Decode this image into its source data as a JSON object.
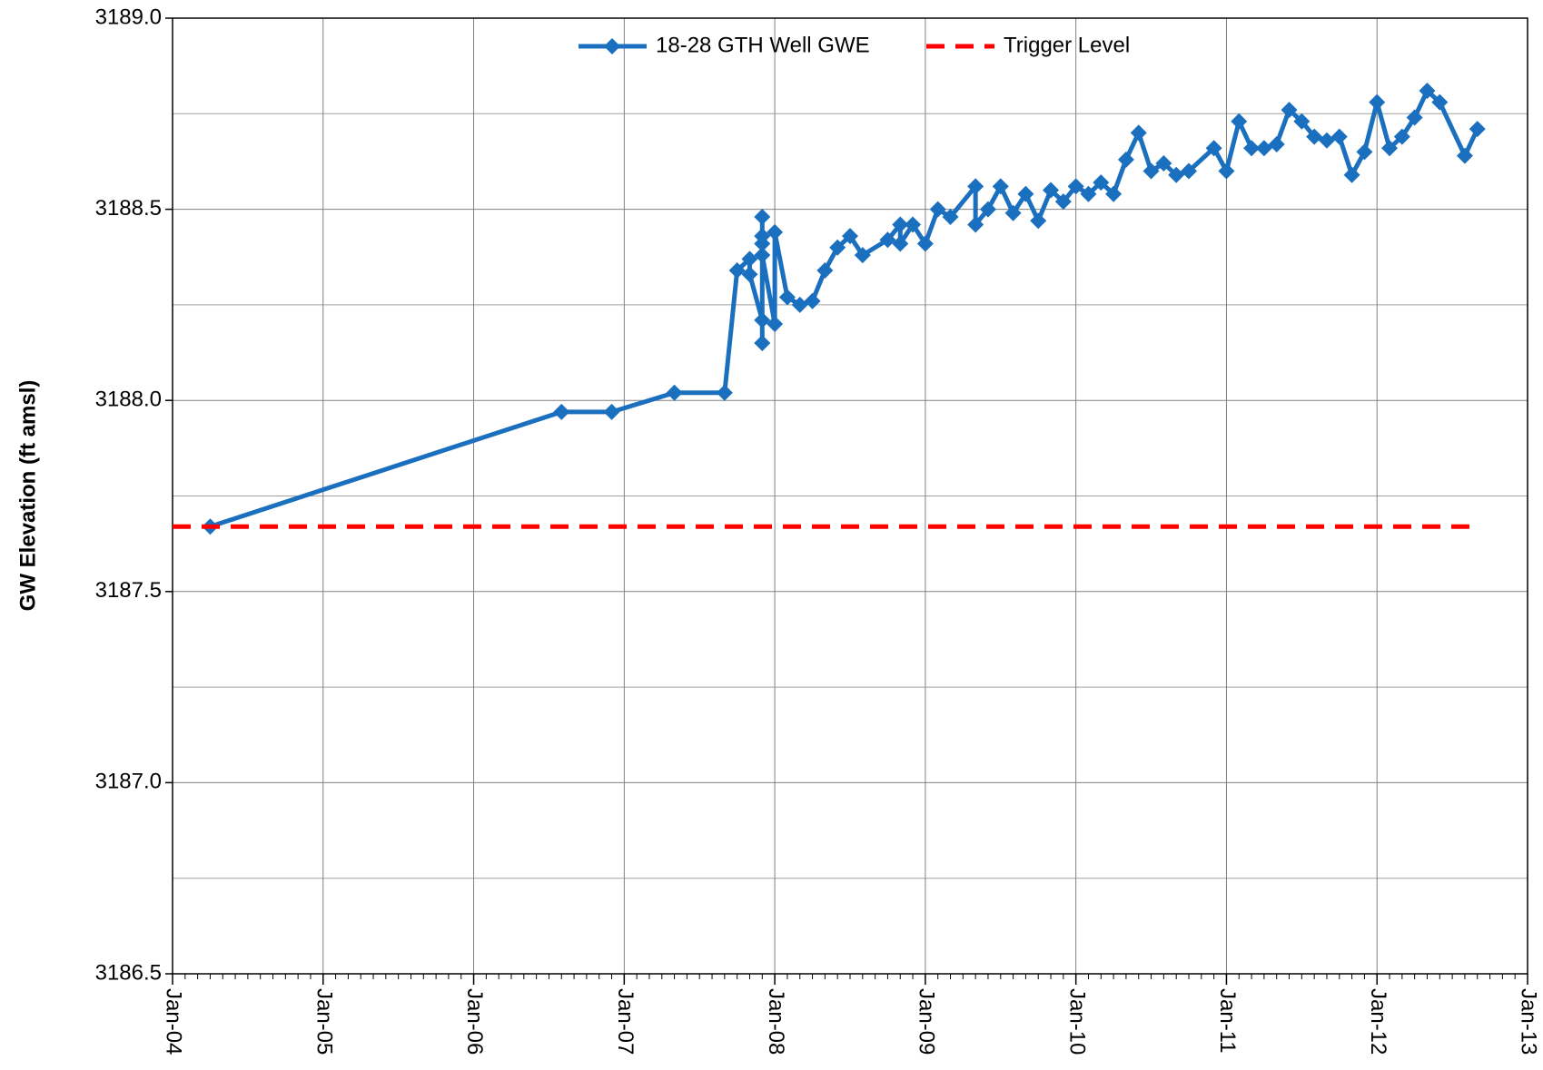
{
  "chart_data": {
    "type": "line",
    "y_label": "GW Elevation (ft amsl)",
    "xlim": [
      "2004-01",
      "2013-01"
    ],
    "xticks": [
      {
        "value": "2004-01",
        "label": "Jan-04"
      },
      {
        "value": "2005-01",
        "label": "Jan-05"
      },
      {
        "value": "2006-01",
        "label": "Jan-06"
      },
      {
        "value": "2007-01",
        "label": "Jan-07"
      },
      {
        "value": "2008-01",
        "label": "Jan-08"
      },
      {
        "value": "2009-01",
        "label": "Jan-09"
      },
      {
        "value": "2010-01",
        "label": "Jan-10"
      },
      {
        "value": "2011-01",
        "label": "Jan-11"
      },
      {
        "value": "2012-01",
        "label": "Jan-12"
      },
      {
        "value": "2013-01",
        "label": "Jan-13"
      }
    ],
    "ylim": [
      3186.5,
      3189.0
    ],
    "yticks": [
      {
        "value": 3186.5,
        "label": "3186.5"
      },
      {
        "value": 3187,
        "label": "3187.0"
      },
      {
        "value": 3187.5,
        "label": "3187.5"
      },
      {
        "value": 3188,
        "label": "3188.0"
      },
      {
        "value": 3188.5,
        "label": "3188.5"
      },
      {
        "value": 3189,
        "label": "3189.0"
      }
    ],
    "y_minor_gridlines": [
      3186.75,
      3187.25,
      3187.75,
      3188.25,
      3188.75
    ],
    "grid": true,
    "legend": "top",
    "series": [
      {
        "name": "18-28 GTH Well GWE",
        "color": "#1a6fbe",
        "marker": "diamond",
        "x": [
          "2004-04",
          "2006-08",
          "2006-12",
          "2007-05",
          "2007-09",
          "2007-10",
          "2007-11",
          "2007-11",
          "2007-12",
          "2007-12",
          "2007-12",
          "2007-12",
          "2007-12",
          "2007-12",
          "2008-01",
          "2008-01",
          "2008-02",
          "2008-03",
          "2008-04",
          "2008-05",
          "2008-06",
          "2008-07",
          "2008-08",
          "2008-10",
          "2008-11",
          "2008-11",
          "2008-12",
          "2009-01",
          "2009-02",
          "2009-03",
          "2009-05",
          "2009-05",
          "2009-06",
          "2009-07",
          "2009-08",
          "2009-09",
          "2009-10",
          "2009-11",
          "2009-12",
          "2010-01",
          "2010-02",
          "2010-03",
          "2010-04",
          "2010-05",
          "2010-06",
          "2010-07",
          "2010-08",
          "2010-09",
          "2010-10",
          "2010-12",
          "2011-01",
          "2011-02",
          "2011-03",
          "2011-04",
          "2011-05",
          "2011-06",
          "2011-07",
          "2011-08",
          "2011-09",
          "2011-10",
          "2011-11",
          "2011-12",
          "2012-01",
          "2012-02",
          "2012-03",
          "2012-04",
          "2012-05",
          "2012-06",
          "2012-08",
          "2012-09"
        ],
        "values": [
          3187.67,
          3187.97,
          3187.97,
          3188.02,
          3188.02,
          3188.34,
          3188.37,
          3188.33,
          3188.21,
          3188.43,
          3188.48,
          3188.15,
          3188.41,
          3188.38,
          3188.2,
          3188.44,
          3188.27,
          3188.25,
          3188.26,
          3188.34,
          3188.4,
          3188.43,
          3188.38,
          3188.42,
          3188.46,
          3188.41,
          3188.46,
          3188.41,
          3188.5,
          3188.48,
          3188.56,
          3188.46,
          3188.5,
          3188.56,
          3188.49,
          3188.54,
          3188.47,
          3188.55,
          3188.52,
          3188.56,
          3188.54,
          3188.57,
          3188.54,
          3188.63,
          3188.7,
          3188.6,
          3188.62,
          3188.59,
          3188.6,
          3188.66,
          3188.6,
          3188.73,
          3188.66,
          3188.66,
          3188.67,
          3188.76,
          3188.73,
          3188.69,
          3188.68,
          3188.69,
          3188.59,
          3188.65,
          3188.78,
          3188.66,
          3188.69,
          3188.74,
          3188.81,
          3188.78,
          3188.64,
          3188.71
        ]
      },
      {
        "name": "Trigger Level",
        "color": "#ff0000",
        "dashed": true,
        "x": [
          "2004-01",
          "2012-09"
        ],
        "values": [
          3187.67,
          3187.67
        ]
      }
    ]
  }
}
